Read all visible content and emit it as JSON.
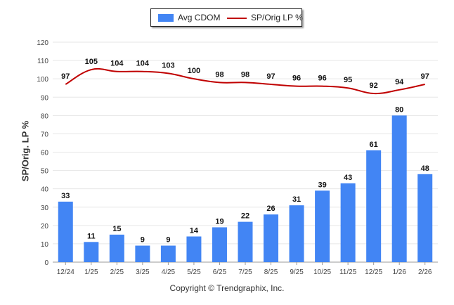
{
  "legend": {
    "series1": "Avg CDOM",
    "series2": "SP/Orig LP %"
  },
  "footer": "Copyright © Trendgraphix, Inc.",
  "colors": {
    "bar": "#4285f4",
    "line": "#c00000",
    "grid": "#e6e6e6"
  },
  "chart_data": {
    "type": "bar",
    "categories": [
      "12/24",
      "1/25",
      "2/25",
      "3/25",
      "4/25",
      "5/25",
      "6/25",
      "7/25",
      "8/25",
      "9/25",
      "10/25",
      "11/25",
      "12/25",
      "1/26",
      "2/26"
    ],
    "ylabel": "SP/Orig. LP %",
    "ylim": [
      0,
      120
    ],
    "yticks": [
      0,
      10,
      20,
      30,
      40,
      50,
      60,
      70,
      80,
      90,
      100,
      110,
      120
    ],
    "grid": true,
    "legend_position": "top",
    "series": [
      {
        "name": "Avg CDOM",
        "type": "bar",
        "values": [
          33,
          11,
          15,
          9,
          9,
          14,
          19,
          22,
          26,
          31,
          39,
          43,
          61,
          80,
          48
        ]
      },
      {
        "name": "SP/Orig LP %",
        "type": "line",
        "values": [
          97,
          105,
          104,
          104,
          103,
          100,
          98,
          98,
          97,
          96,
          96,
          95,
          92,
          94,
          97
        ]
      }
    ]
  }
}
